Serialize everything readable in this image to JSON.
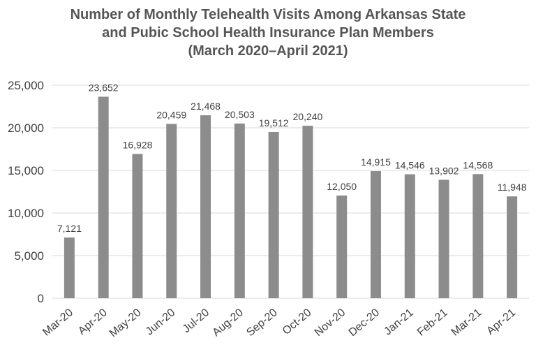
{
  "chart_data": {
    "type": "bar",
    "title_lines": [
      "Number of Monthly Telehealth Visits Among Arkansas State",
      "and Pubic School Health Insurance Plan Members",
      "(March 2020–April 2021)"
    ],
    "categories": [
      "Mar-20",
      "Apr-20",
      "May-20",
      "Jun-20",
      "Jul-20",
      "Aug-20",
      "Sep-20",
      "Oct-20",
      "Nov-20",
      "Dec-20",
      "Jan-21",
      "Feb-21",
      "Mar-21",
      "Apr-21"
    ],
    "values": [
      7121,
      23652,
      16928,
      20459,
      21468,
      20503,
      19512,
      20240,
      12050,
      14915,
      14546,
      13902,
      14568,
      11948
    ],
    "data_labels": [
      "7,121",
      "23,652",
      "16,928",
      "20,459",
      "21,468",
      "20,503",
      "19,512",
      "20,240",
      "12,050",
      "14,915",
      "14,546",
      "13,902",
      "14,568",
      "11,948"
    ],
    "yticks": [
      0,
      5000,
      10000,
      15000,
      20000,
      25000
    ],
    "ytick_labels": [
      "0",
      "5,000",
      "10,000",
      "15,000",
      "20,000",
      "25,000"
    ],
    "ylim": [
      0,
      25000
    ],
    "grid": true,
    "legend": "none",
    "bar_color": "#8c8c8c",
    "grid_color": "#d9d9d9",
    "text_color": "#404040",
    "title_color": "#555555"
  }
}
